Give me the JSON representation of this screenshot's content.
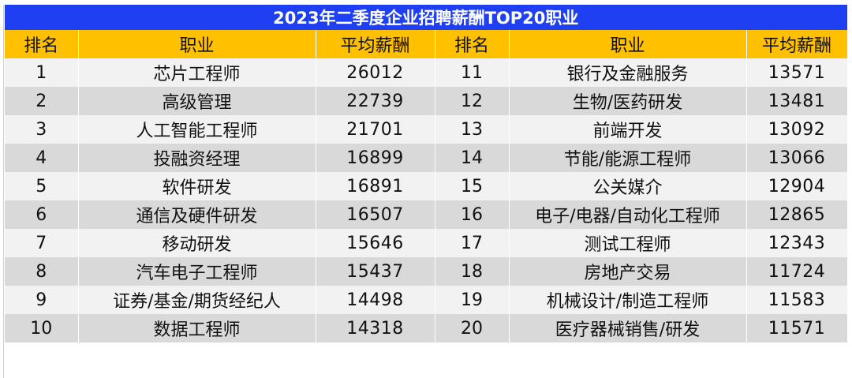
{
  "table": {
    "title": "2023年二季度企业招聘薪酬TOP20职业",
    "headers": [
      "排名",
      "职业",
      "平均薪酬",
      "排名",
      "职业",
      "平均薪酬"
    ],
    "rows": [
      {
        "rank_a": "1",
        "job_a": "芯片工程师",
        "salary_a": "26012",
        "rank_b": "11",
        "job_b": "银行及金融服务",
        "salary_b": "13571"
      },
      {
        "rank_a": "2",
        "job_a": "高级管理",
        "salary_a": "22739",
        "rank_b": "12",
        "job_b": "生物/医药研发",
        "salary_b": "13481"
      },
      {
        "rank_a": "3",
        "job_a": "人工智能工程师",
        "salary_a": "21701",
        "rank_b": "13",
        "job_b": "前端开发",
        "salary_b": "13092"
      },
      {
        "rank_a": "4",
        "job_a": "投融资经理",
        "salary_a": "16899",
        "rank_b": "14",
        "job_b": "节能/能源工程师",
        "salary_b": "13066"
      },
      {
        "rank_a": "5",
        "job_a": "软件研发",
        "salary_a": "16891",
        "rank_b": "15",
        "job_b": "公关媒介",
        "salary_b": "12904"
      },
      {
        "rank_a": "6",
        "job_a": "通信及硬件研发",
        "salary_a": "16507",
        "rank_b": "16",
        "job_b": "电子/电器/自动化工程师",
        "salary_b": "12865"
      },
      {
        "rank_a": "7",
        "job_a": "移动研发",
        "salary_a": "15646",
        "rank_b": "17",
        "job_b": "测试工程师",
        "salary_b": "12343"
      },
      {
        "rank_a": "8",
        "job_a": "汽车电子工程师",
        "salary_a": "15437",
        "rank_b": "18",
        "job_b": "房地产交易",
        "salary_b": "11724"
      },
      {
        "rank_a": "9",
        "job_a": "证券/基金/期货经纪人",
        "salary_a": "14498",
        "rank_b": "19",
        "job_b": "机械设计/制造工程师",
        "salary_b": "11583"
      },
      {
        "rank_a": "10",
        "job_a": "数据工程师",
        "salary_a": "14318",
        "rank_b": "20",
        "job_b": "医疗器械销售/研发",
        "salary_b": "11571"
      }
    ]
  },
  "colors": {
    "title_bg": "#1f3ff2",
    "header_bg": "#ffc000",
    "row_light": "#f2f2f2",
    "row_dark": "#d9d9d9"
  }
}
